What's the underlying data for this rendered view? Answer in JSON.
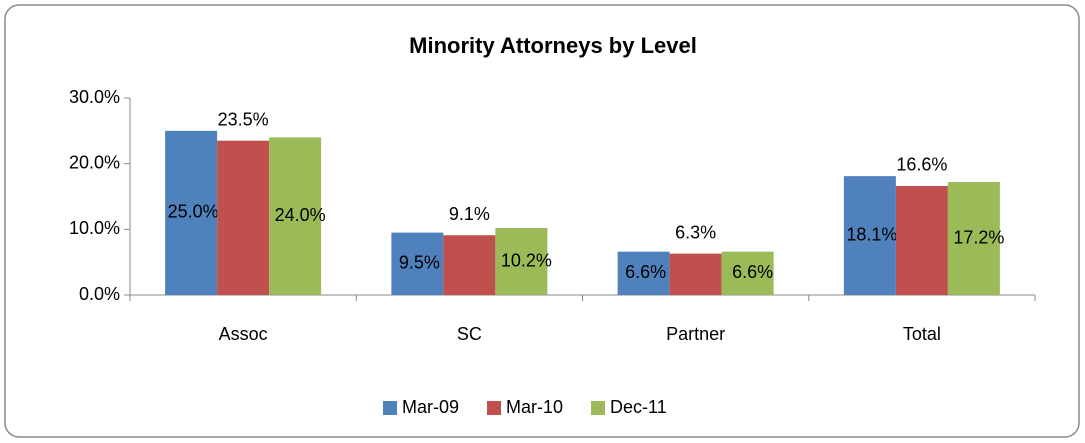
{
  "chart_data": {
    "type": "bar",
    "title": "Minority Attorneys by Level",
    "categories": [
      "Assoc",
      "SC",
      "Partner",
      "Total"
    ],
    "series": [
      {
        "name": "Mar-09",
        "color": "#4f81bd",
        "values": [
          25.0,
          9.5,
          6.6,
          18.1
        ],
        "value_labels": [
          "25.0%",
          "9.5%",
          "6.6%",
          "18.1%"
        ]
      },
      {
        "name": "Mar-10",
        "color": "#c0504d",
        "values": [
          23.5,
          9.1,
          6.3,
          16.6
        ],
        "value_labels": [
          "23.5%",
          "9.1%",
          "6.3%",
          "16.6%"
        ]
      },
      {
        "name": "Dec-11",
        "color": "#9bbb59",
        "values": [
          24.0,
          10.2,
          6.6,
          17.2
        ],
        "value_labels": [
          "24.0%",
          "10.2%",
          "6.6%",
          "17.2%"
        ]
      }
    ],
    "ylim": [
      0,
      30
    ],
    "yticks": [
      {
        "value": 0,
        "label": "0.0%"
      },
      {
        "value": 10,
        "label": "10.0%"
      },
      {
        "value": 20,
        "label": "20.0%"
      },
      {
        "value": 30,
        "label": "30.0%"
      }
    ],
    "legend": "bottom"
  }
}
